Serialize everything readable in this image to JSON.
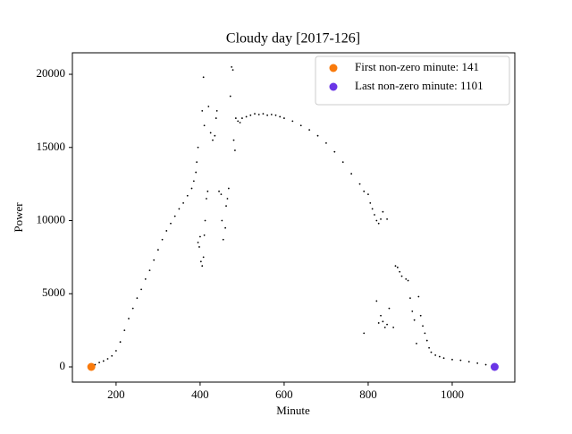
{
  "chart_data": {
    "type": "scatter",
    "title": "Cloudy day [2017-126]",
    "x_label": "Minute",
    "y_label": "Power",
    "xlim": [
      96,
      1149
    ],
    "ylim": [
      -1040,
      21470
    ],
    "xticks": [
      200,
      400,
      600,
      800,
      1000
    ],
    "yticks": [
      0,
      5000,
      10000,
      15000,
      20000
    ],
    "legend_position": "upper right",
    "series": [
      {
        "color": "#000000",
        "x": [
          150,
          160,
          170,
          180,
          190,
          200,
          210,
          220,
          230,
          240,
          250,
          260,
          270,
          280,
          290,
          300,
          310,
          320,
          330,
          340,
          350,
          360,
          370,
          380,
          385,
          390,
          392,
          395,
          395,
          398,
          400,
          402,
          405,
          408,
          410,
          412,
          415,
          418,
          405,
          408,
          410,
          420,
          425,
          430,
          435,
          438,
          440,
          445,
          450,
          452,
          455,
          460,
          462,
          465,
          468,
          472,
          475,
          478,
          480,
          483,
          485,
          490,
          495,
          500,
          510,
          520,
          530,
          540,
          550,
          560,
          570,
          580,
          590,
          600,
          620,
          640,
          660,
          680,
          700,
          720,
          740,
          760,
          780,
          790,
          800,
          805,
          810,
          815,
          820,
          825,
          830,
          835,
          845,
          790,
          820,
          825,
          830,
          835,
          840,
          845,
          850,
          860,
          865,
          870,
          875,
          880,
          890,
          895,
          900,
          905,
          910,
          915,
          920,
          925,
          930,
          935,
          940,
          945,
          950,
          960,
          970,
          980,
          1000,
          1020,
          1040,
          1060,
          1080,
          1095
        ],
        "values": [
          150,
          300,
          400,
          550,
          750,
          1100,
          1700,
          2500,
          3300,
          4000,
          4700,
          5300,
          6000,
          6600,
          7300,
          8000,
          8700,
          9300,
          9800,
          10300,
          10800,
          11200,
          11700,
          12200,
          12700,
          13300,
          14000,
          15000,
          8500,
          8200,
          8900,
          7200,
          6900,
          7500,
          9000,
          10000,
          11500,
          12000,
          17500,
          19800,
          16500,
          17800,
          16000,
          15500,
          15800,
          17000,
          17500,
          12000,
          11800,
          10000,
          8700,
          9500,
          11000,
          11500,
          12200,
          18500,
          20500,
          20300,
          15500,
          14800,
          17000,
          16800,
          16700,
          17000,
          17100,
          17200,
          17300,
          17250,
          17300,
          17200,
          17250,
          17200,
          17100,
          17000,
          16800,
          16500,
          16200,
          15800,
          15300,
          14700,
          14000,
          13200,
          12500,
          12000,
          11800,
          11200,
          10800,
          10400,
          10000,
          9800,
          10100,
          10600,
          10100,
          2300,
          4500,
          3000,
          3500,
          3100,
          2700,
          2900,
          4000,
          2700,
          6900,
          6800,
          6500,
          6200,
          6000,
          5900,
          4700,
          3800,
          3200,
          1600,
          4800,
          3500,
          2800,
          2300,
          1800,
          1300,
          1000,
          800,
          700,
          600,
          500,
          450,
          350,
          250,
          150,
          50
        ]
      },
      {
        "name": "First non-zero minute: 141",
        "color": "#f97a0c",
        "x": [
          141
        ],
        "values": [
          0
        ]
      },
      {
        "name": "Last non-zero minute: 1101",
        "color": "#6a35e6",
        "x": [
          1101
        ],
        "values": [
          0
        ]
      }
    ]
  }
}
